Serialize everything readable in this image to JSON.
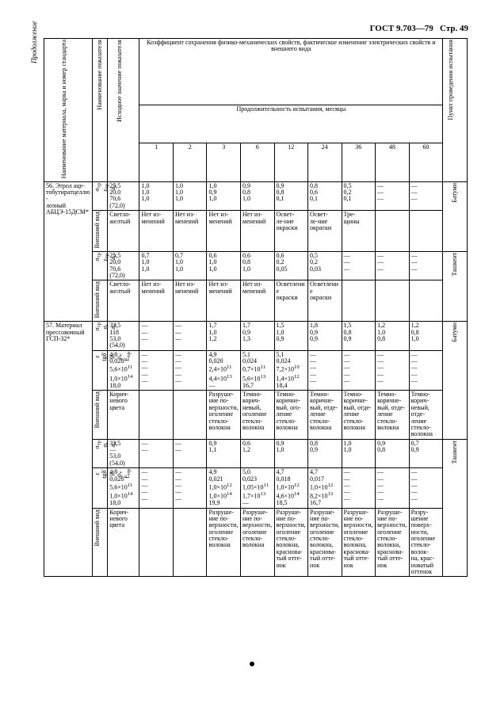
{
  "header": {
    "doc_ref": "ГОСТ 9.703—79",
    "page_ref": "Стр. 49",
    "continuation": "Продолжение"
  },
  "columns": {
    "material": "Наименование материала, марка и номер стандарта",
    "indicator": "Наименование показателя",
    "initial": "Исходное значение показателя",
    "change_header": "Коэффициент сохранения физико-механических свойств, фактическое изменение электрических свойств и внешнего вида",
    "duration": "Продолжительность испытания, месяцы",
    "months": [
      "1",
      "2",
      "3",
      "6",
      "12",
      "24",
      "36",
      "48",
      "60"
    ],
    "site": "Пункт проведения испытания"
  },
  "rows": [
    {
      "material": "56. Этрол аце-\nтобутиратцеллю-\nлозный\nАБЦЭ-15ДСМ*",
      "blocks": [
        {
          "indicators": [
            "σ<sub>тр</sub>",
            "ε<sub>тр</sub>",
            "a<sub>n</sub>"
          ],
          "initial": [
            "25,5",
            "20,0",
            "70,6",
            "(72,0)"
          ],
          "months": {
            "1": [
              "1,0",
              "1,0",
              "1,0"
            ],
            "2": [
              "1,0",
              "1,0",
              "1,0"
            ],
            "3": [
              "1,0",
              "0,9",
              "1,0"
            ],
            "6": [
              "0,9",
              "0,8",
              "1,0"
            ],
            "12": [
              "0,9",
              "0,8",
              "0,1"
            ],
            "24": [
              "0,8",
              "0,6",
              "0,1"
            ],
            "36": [
              "0,5",
              "0,2",
              "0,1"
            ],
            "48": [
              "—",
              "—",
              "—"
            ],
            "60": [
              "—",
              "—",
              "—"
            ]
          },
          "appearance_ind": "Внешний вид",
          "appearance_init": "Светло-\nжелтый",
          "appearance_months": {
            "1": "Нет из-\nменений",
            "2": "Нет из-\nменений",
            "3": "Нет из-\nменений",
            "6": "Нет из-\nменений",
            "12": "Освет-\nле-ние\nокраски",
            "24": "Освет-\nле-ние\nокраски",
            "36": "Тре-\nщины",
            "48": "",
            "60": ""
          },
          "site": "Батуми"
        },
        {
          "indicators": [
            "σ<sub>тр</sub>",
            "ε<sub>тр</sub>",
            "a<sub>n</sub>"
          ],
          "initial": [
            "25,5",
            "20,0",
            "70,6",
            "(72,0)"
          ],
          "months": {
            "1": [
              "0,7",
              "1,0",
              "1,0"
            ],
            "2": [
              "0,7",
              "1,0",
              "1,0"
            ],
            "3": [
              "0,6",
              "1,0",
              "1,0"
            ],
            "6": [
              "0,6",
              "0,8",
              "1,0"
            ],
            "12": [
              "0,6",
              "0,2",
              "0,05"
            ],
            "24": [
              "0,5",
              "0,2",
              "0,03"
            ],
            "36": [
              "—",
              "—",
              "—"
            ],
            "48": [
              "—",
              "—",
              "—"
            ],
            "60": [
              "—",
              "—",
              "—"
            ]
          },
          "appearance_ind": "Внешний вид",
          "appearance_init": "Светло-\nжелтый",
          "appearance_months": {
            "1": "Нет из-\nменений",
            "2": "Нет из-\nменений",
            "3": "Нет из-\nменений",
            "6": "Нет из-\nменений",
            "12": "Осветление\nокраски",
            "24": "Осветление\nокраски",
            "36": "",
            "48": "",
            "60": ""
          },
          "site": "Ташкент"
        }
      ]
    },
    {
      "material": "57. Материал\nпрессовочный\nГСП-32*",
      "blocks": [
        {
          "indicators": [
            "σ<sub>тр</sub>",
            "σ<sub>i</sub>",
            "a<sub>n</sub>"
          ],
          "initial": [
            "33,5",
            "118",
            "53,0",
            "(54,0)"
          ],
          "months": {
            "1": [
              "—",
              "—",
              "—"
            ],
            "2": [
              "—",
              "—",
              "—"
            ],
            "3": [
              "1,7",
              "1,0",
              "1,2"
            ],
            "6": [
              "1,7",
              "0,9",
              "1,3"
            ],
            "12": [
              "1,5",
              "1,0",
              "0,9"
            ],
            "24": [
              "1,8",
              "0,9",
              "0,9"
            ],
            "36": [
              "1,5",
              "0,8",
              "0,9"
            ],
            "48": [
              "1,2",
              "1,0",
              "0,8"
            ],
            "60": [
              "1,2",
              "0,8",
              "1,0"
            ]
          },
          "extra_ind": [
            "ε",
            "tgδ'",
            "ρ<sub>s</sub>",
            "ρ<sub>v</sub>",
            "E<sub>пр</sub>"
          ],
          "extra_init": [
            "4,8",
            "0,028",
            "5,6×10<sup>11</sup>",
            "1,0×10<sup>14</sup>",
            "18,0"
          ],
          "extra_months": {
            "1": [
              "—",
              "—",
              "—",
              "—",
              "—"
            ],
            "2": [
              "—",
              "—",
              "—",
              "—",
              "—"
            ],
            "3": [
              "4,9",
              "0,020",
              "2,4×10<sup>11</sup>",
              "4,4×10<sup>13</sup>",
              "—"
            ],
            "6": [
              "5,1",
              "0,024",
              "0,7×10<sup>11</sup>",
              "5,6×10<sup>13</sup>",
              "16,7"
            ],
            "12": [
              "5,1",
              "0,024",
              "7,2×10<sup>10</sup>",
              "1,4×10<sup>12</sup>",
              "18,4"
            ],
            "24": [
              "—",
              "—",
              "—",
              "—",
              "—"
            ],
            "36": [
              "—",
              "—",
              "—",
              "—",
              "—"
            ],
            "48": [
              "—",
              "—",
              "—",
              "—",
              "—"
            ],
            "60": [
              "—",
              "—",
              "—",
              "—",
              "—"
            ]
          },
          "appearance_ind": "Внешний вид",
          "appearance_init": "Корич-\nневого\nцвета",
          "appearance_months": {
            "1": "",
            "2": "",
            "3": "Разруше-\nние по-\nверхности,\nоголение\nстекло-\nволокна",
            "6": "Темно-\nкорич-\nневый,\nоголение\nстекло-\nволокна",
            "12": "Темно-\nкоричне-\nвый, ого-\nление\nстекло-\nволокна",
            "24": "Темно-\nкоричне-\nвый, отде-\nление\nстекло-\nволокна",
            "36": "Темно-\nкоричне-\nвый, отде-\nление\nстекло-\nволокна",
            "48": "Темно-\nкоричне-\nвый, отде-\nление\nстекло-\nволокна",
            "60": "Темно-\nкорич-\nневый,\nотде-\nление\nстекло-\nволокна"
          },
          "site": "Батуми"
        },
        {
          "indicators": [
            "σ<sub>тр</sub>",
            "σ<sub>i</sub>",
            "a<sub>n</sub>"
          ],
          "initial": [
            "33,5",
            "—",
            "53,0",
            "(54,0)"
          ],
          "months": {
            "1": [
              "—",
              "—"
            ],
            "2": [
              "—",
              "—"
            ],
            "3": [
              "0,9",
              "1,1"
            ],
            "6": [
              "0,6",
              "1,2"
            ],
            "12": [
              "0,9",
              "1,0"
            ],
            "24": [
              "0,8",
              "0,9"
            ],
            "36": [
              "1,0",
              "1,0"
            ],
            "48": [
              "0,9",
              "0,8"
            ],
            "60": [
              "0,7",
              "0,9"
            ]
          },
          "extra_ind": [
            "ε",
            "tgδ'",
            "ρ<sub>s</sub>",
            "ρ<sub>v</sub>",
            "E<sub>пр</sub>"
          ],
          "extra_init": [
            "4,8",
            "0,028",
            "5,6×10<sup>11</sup>",
            "1,0×10<sup>14</sup>",
            "18,0"
          ],
          "extra_months": {
            "1": [
              "—",
              "—",
              "—",
              "—",
              "—"
            ],
            "2": [
              "—",
              "—",
              "—",
              "—",
              "—"
            ],
            "3": [
              "4,9",
              "0,021",
              "1,0×10<sup>12</sup>",
              "1,0×10<sup>14</sup>",
              "19,9"
            ],
            "6": [
              "5,0",
              "0,023",
              "1,05×10<sup>11</sup>",
              "1,7×10<sup>13</sup>",
              "—"
            ],
            "12": [
              "4,7",
              "0,018",
              "1,0×10<sup>12</sup>",
              "4,6×10<sup>14</sup>",
              "18,5"
            ],
            "24": [
              "4,7",
              "0,017",
              "1,0×10<sup>12</sup>",
              "8,2×10<sup>13</sup>",
              "16,7"
            ],
            "36": [
              "—",
              "—",
              "—",
              "—",
              "—"
            ],
            "48": [
              "—",
              "—",
              "—",
              "—",
              "—"
            ],
            "60": [
              "—",
              "—",
              "—",
              "—",
              "—"
            ]
          },
          "appearance_ind": "Внешний вид",
          "appearance_init": "Корич-\nневого\nцвета",
          "appearance_months": {
            "1": "",
            "2": "",
            "3": "Разруше-\nние по-\nверхности,\nоголение\nстекло-\nволокна",
            "6": "Разруше-\nние по-\nверхности,\nоголение\nстекло-\nволокна",
            "12": "Разруше-\nние по-\nверхности,\nоголение\nстекло-\nволокна,\nкраснова-\nтый отте-\nнок",
            "24": "Разруше-\nние по-\nверхности,\nоголение\nстекло-\nволокна,\nкраснова-\nтый отте-\nнок",
            "36": "Разруше-\nние по-\nверхности,\nоголение\nстекло-\nволокна,\nкраснова-\nтый отте-\nнок",
            "48": "Разруше-\nние по-\nверхности,\nоголение\nстекло-\nволокна,\nкраснова-\nтый отте-\nнок",
            "60": "Разру-\nшение\nповерх-\nности,\nоголение\nстекло-\nволок-\nна, крас-\nноватый\nоттенок"
          },
          "site": "Ташкент"
        }
      ]
    }
  ]
}
